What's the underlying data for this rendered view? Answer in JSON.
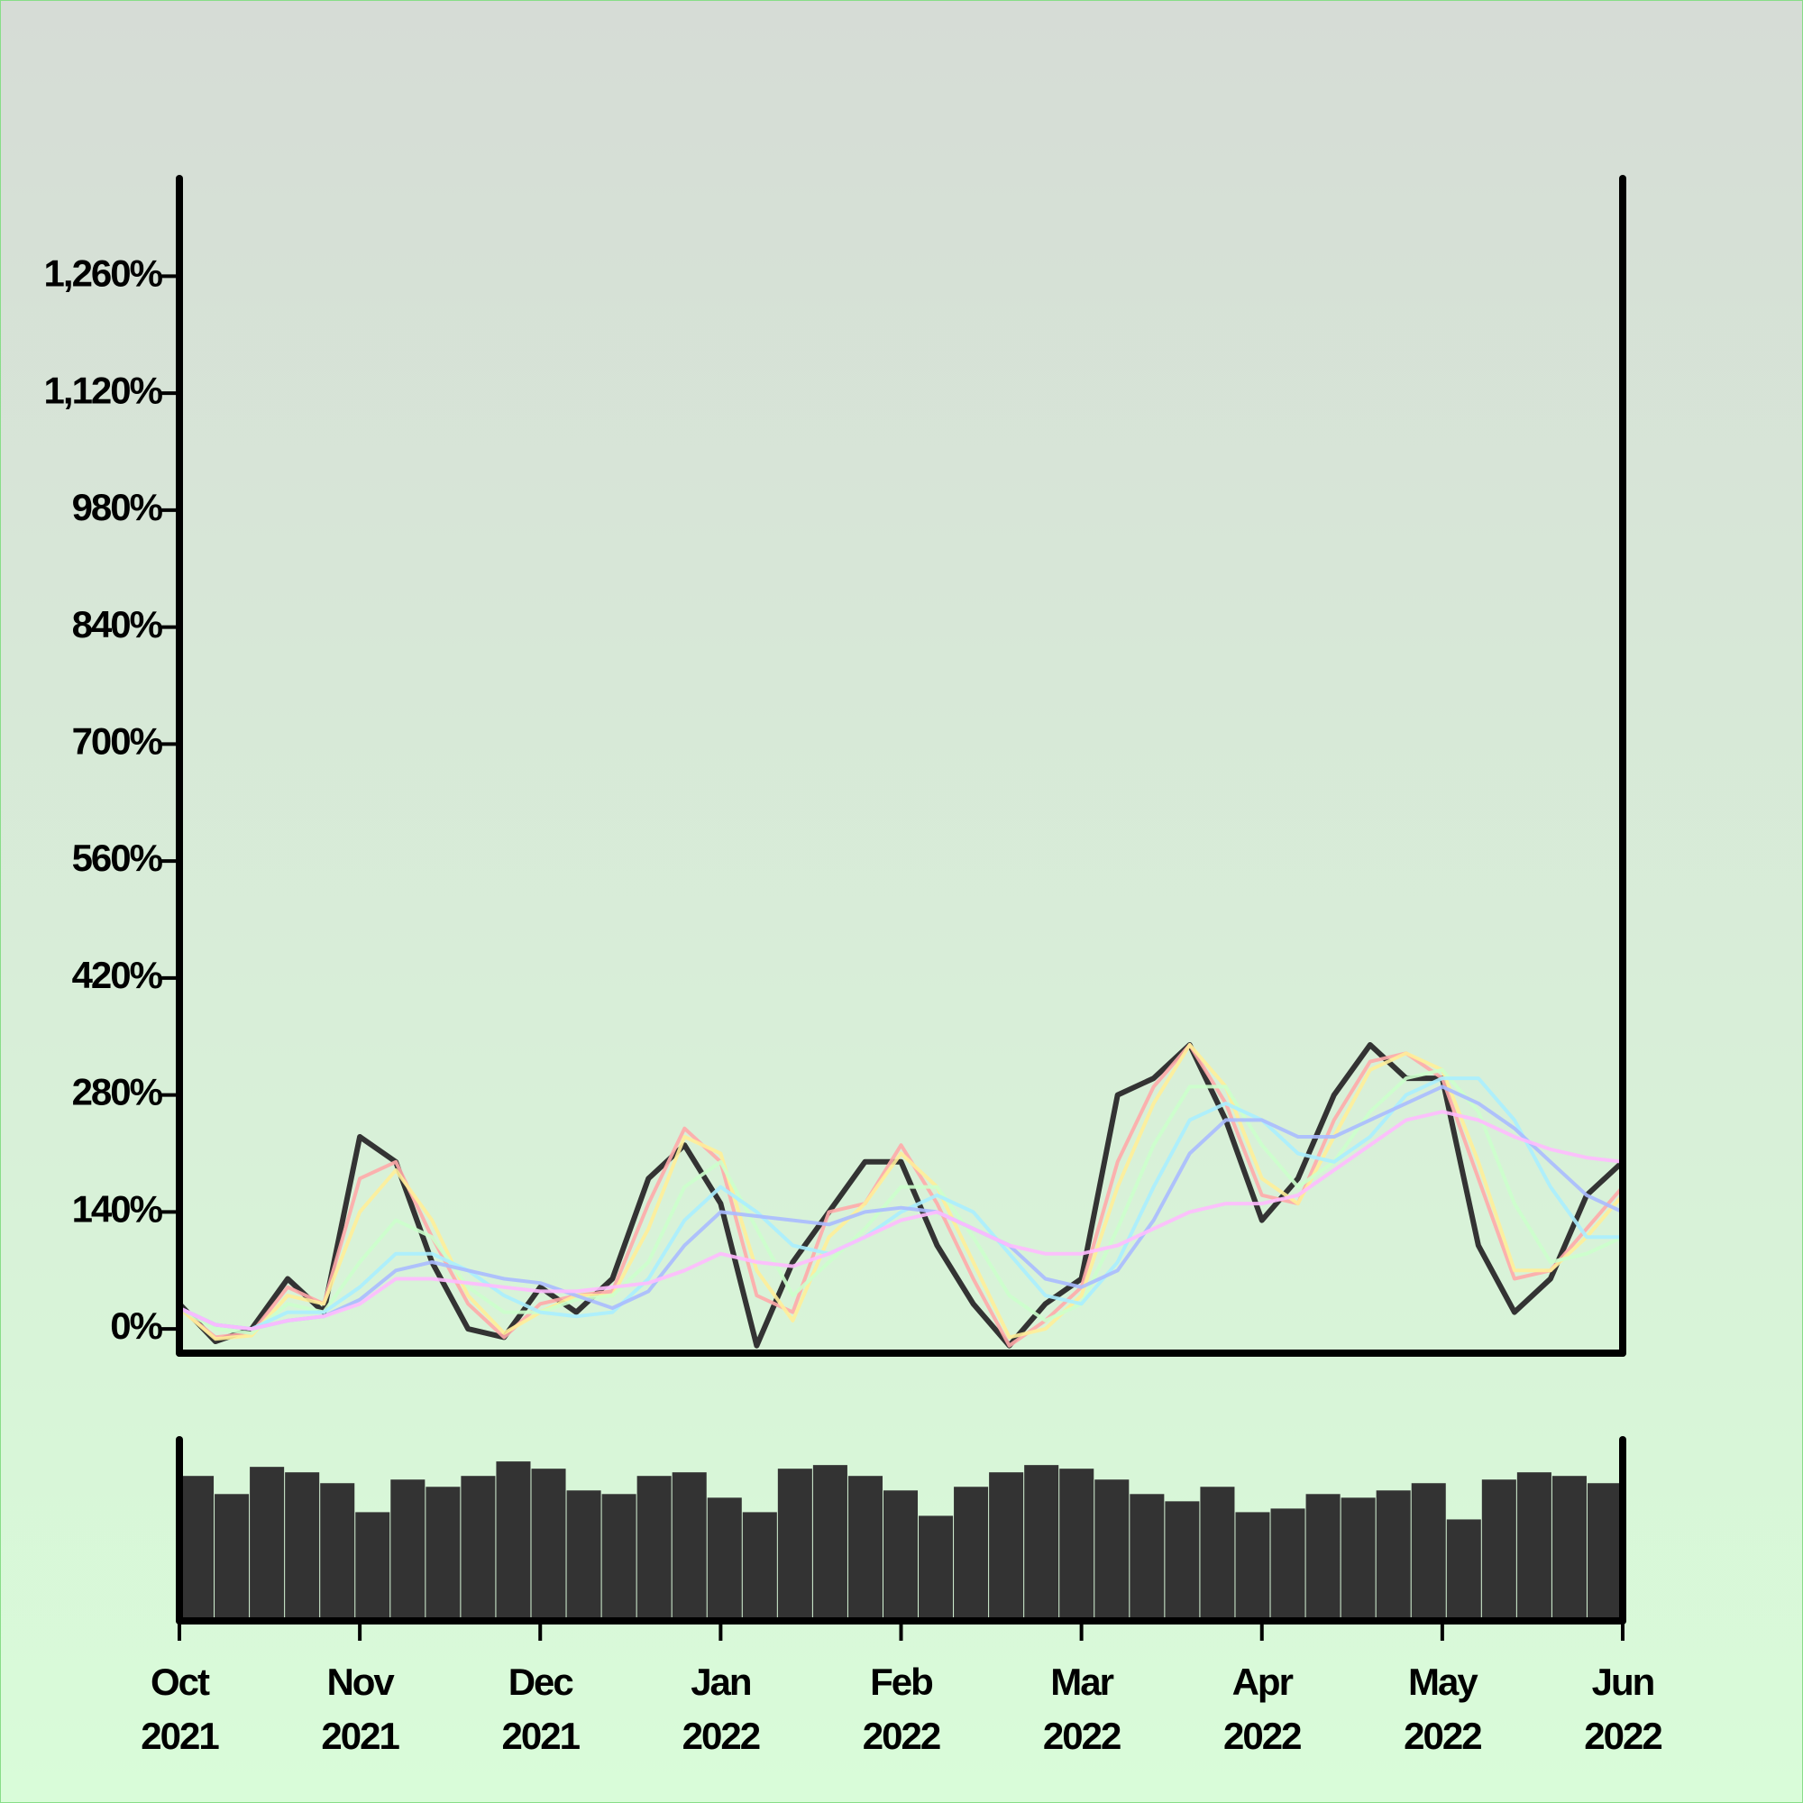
{
  "chart_data": {
    "type": "line",
    "x": [
      0,
      0.2,
      0.4,
      0.6,
      0.8,
      1,
      1.2,
      1.4,
      1.6,
      1.8,
      2,
      2.2,
      2.4,
      2.6,
      2.8,
      3,
      3.2,
      3.4,
      3.6,
      3.8,
      4,
      4.2,
      4.4,
      4.6,
      4.8,
      5,
      5.2,
      5.4,
      5.6,
      5.8,
      6,
      6.2,
      6.4,
      6.6,
      6.8,
      7,
      7.2,
      7.4,
      7.6,
      7.8,
      8
    ],
    "xlim": [
      0,
      8
    ],
    "xticks": [
      {
        "value": 0,
        "label": "Oct 2021"
      },
      {
        "value": 1,
        "label": "Nov 2021"
      },
      {
        "value": 2,
        "label": "Dec 2021"
      },
      {
        "value": 3,
        "label": "Jan 2022"
      },
      {
        "value": 4,
        "label": "Feb 2022"
      },
      {
        "value": 5,
        "label": "Mar 2022"
      },
      {
        "value": 6,
        "label": "Apr 2022"
      },
      {
        "value": 7,
        "label": "May 2022"
      },
      {
        "value": 8,
        "label": "Jun 2022"
      }
    ],
    "ylim": [
      -29,
      1377
    ],
    "yticks": [
      {
        "value": 0,
        "label": "0%"
      },
      {
        "value": 140,
        "label": "140%"
      },
      {
        "value": 280,
        "label": "280%"
      },
      {
        "value": 420,
        "label": "420%"
      },
      {
        "value": 560,
        "label": "560%"
      },
      {
        "value": 700,
        "label": "700%"
      },
      {
        "value": 840,
        "label": "840%"
      },
      {
        "value": 980,
        "label": "980%"
      },
      {
        "value": 1120,
        "label": "1,120%"
      },
      {
        "value": 1260,
        "label": "1,260%"
      }
    ],
    "series": [
      {
        "color": "#333333",
        "values": [
          30,
          -15,
          0,
          60,
          20,
          230,
          200,
          80,
          0,
          -10,
          50,
          20,
          60,
          180,
          220,
          150,
          -20,
          80,
          140,
          200,
          200,
          100,
          30,
          -20,
          30,
          60,
          280,
          300,
          340,
          250,
          130,
          180,
          280,
          340,
          300,
          300,
          100,
          20,
          60,
          160,
          200
        ]
      },
      {
        "color": "#ffaaaa",
        "values": [
          25,
          -10,
          -5,
          50,
          30,
          180,
          200,
          110,
          30,
          -10,
          30,
          40,
          45,
          150,
          240,
          200,
          40,
          20,
          140,
          150,
          220,
          150,
          60,
          -20,
          10,
          50,
          200,
          290,
          340,
          270,
          160,
          150,
          250,
          320,
          330,
          300,
          180,
          60,
          70,
          120,
          170
        ]
      },
      {
        "color": "#ffee99",
        "values": [
          25,
          -12,
          -8,
          40,
          30,
          140,
          190,
          130,
          40,
          -5,
          20,
          40,
          40,
          120,
          230,
          210,
          70,
          10,
          110,
          150,
          210,
          170,
          80,
          -10,
          0,
          40,
          170,
          270,
          340,
          290,
          180,
          150,
          230,
          310,
          330,
          310,
          200,
          70,
          70,
          110,
          160
        ]
      },
      {
        "color": "#ccffcc",
        "values": [
          25,
          0,
          -5,
          30,
          20,
          80,
          130,
          110,
          50,
          20,
          20,
          35,
          40,
          80,
          170,
          200,
          120,
          40,
          80,
          120,
          170,
          170,
          110,
          40,
          10,
          30,
          120,
          220,
          290,
          290,
          220,
          170,
          200,
          260,
          300,
          310,
          260,
          150,
          80,
          90,
          110
        ]
      },
      {
        "color": "#aaeeff",
        "values": [
          25,
          5,
          0,
          20,
          20,
          50,
          90,
          90,
          70,
          40,
          20,
          15,
          20,
          60,
          130,
          170,
          140,
          100,
          90,
          110,
          140,
          160,
          140,
          90,
          40,
          30,
          80,
          170,
          250,
          270,
          250,
          210,
          200,
          230,
          280,
          300,
          300,
          250,
          170,
          110,
          110
        ]
      },
      {
        "color": "#aabbff",
        "values": [
          25,
          5,
          0,
          10,
          15,
          35,
          70,
          80,
          70,
          60,
          55,
          40,
          25,
          45,
          100,
          140,
          135,
          130,
          125,
          140,
          145,
          140,
          120,
          100,
          60,
          50,
          70,
          130,
          210,
          250,
          250,
          230,
          230,
          250,
          270,
          290,
          270,
          240,
          200,
          160,
          140
        ]
      },
      {
        "color": "#ffbbff",
        "values": [
          25,
          5,
          0,
          10,
          15,
          30,
          60,
          60,
          55,
          50,
          45,
          45,
          50,
          55,
          70,
          90,
          80,
          75,
          90,
          110,
          130,
          140,
          120,
          100,
          90,
          90,
          100,
          120,
          140,
          150,
          150,
          160,
          190,
          220,
          250,
          260,
          250,
          230,
          215,
          205,
          200
        ]
      }
    ],
    "volume": {
      "color": "#333333",
      "ylim": [
        0,
        100
      ],
      "values": [
        80,
        70,
        85,
        82,
        76,
        60,
        78,
        74,
        80,
        88,
        84,
        72,
        70,
        80,
        82,
        68,
        60,
        84,
        86,
        80,
        72,
        58,
        74,
        82,
        86,
        84,
        78,
        70,
        66,
        74,
        60,
        62,
        70,
        68,
        72,
        76,
        56,
        78,
        82,
        80,
        76
      ]
    }
  }
}
